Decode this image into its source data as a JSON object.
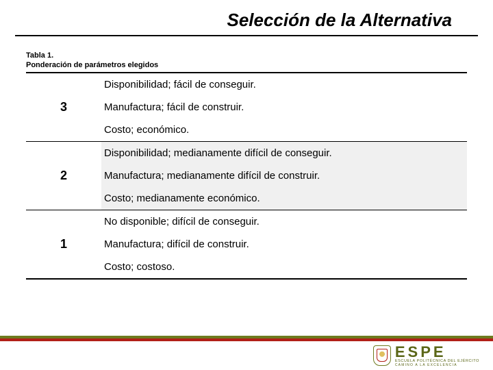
{
  "title": "Selección de la Alternativa",
  "caption_line1": "Tabla 1.",
  "caption_line2": "Ponderación de parámetros elegidos",
  "groups": [
    {
      "score": "3",
      "rows": [
        {
          "text": "Disponibilidad; fácil de conseguir.",
          "shaded": false
        },
        {
          "text": "Manufactura; fácil de construir.",
          "shaded": false
        },
        {
          "text": "Costo; económico.",
          "shaded": false
        }
      ],
      "shaded": false
    },
    {
      "score": "2",
      "rows": [
        {
          "text": "Disponibilidad; medianamente difícil de conseguir.",
          "shaded": true
        },
        {
          "text": "Manufactura; medianamente difícil de construir.",
          "shaded": true
        },
        {
          "text": "Costo; medianamente económico.",
          "shaded": true
        }
      ],
      "shaded": true
    },
    {
      "score": "1",
      "rows": [
        {
          "text": "No disponible; difícil de conseguir.",
          "shaded": false
        },
        {
          "text": "Manufactura; difícil de construir.",
          "shaded": false
        },
        {
          "text": "Costo; costoso.",
          "shaded": false
        }
      ],
      "shaded": false
    }
  ],
  "logo": {
    "name": "ESPE",
    "sub1": "ESCUELA POLITÉCNICA DEL EJÉRCITO",
    "sub2": "CAMINO A LA EXCELENCIA"
  },
  "colors": {
    "olive": "#6e7a1f",
    "red": "#b22018",
    "shade": "#f0f0f0"
  }
}
